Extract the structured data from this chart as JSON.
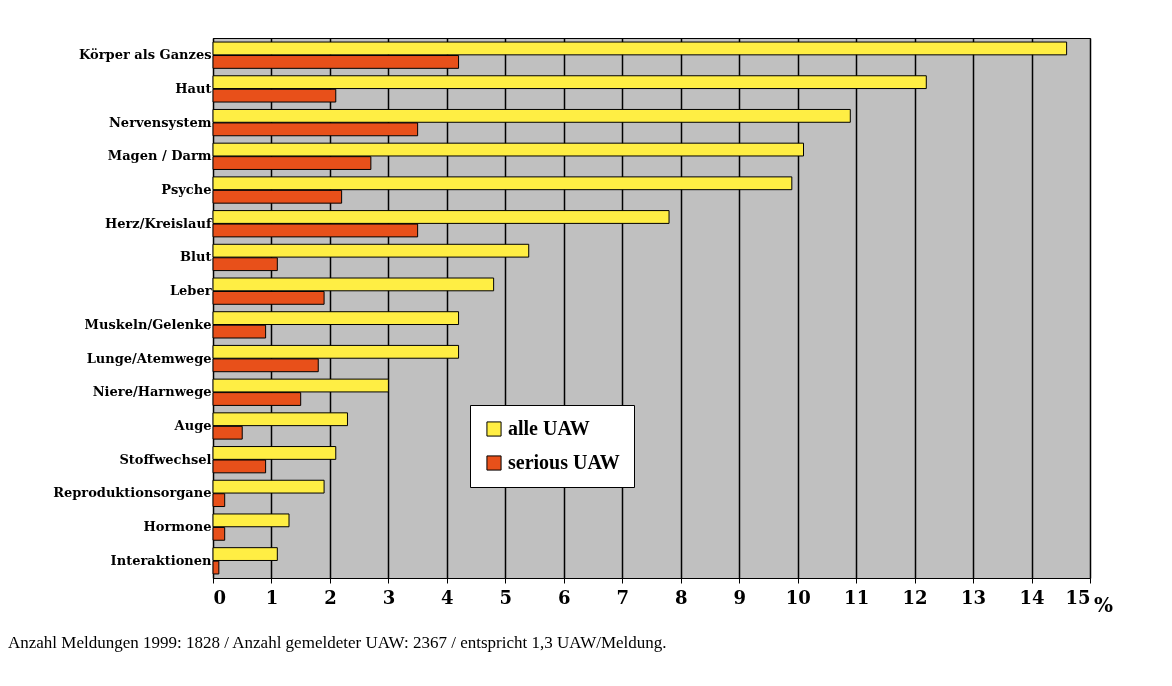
{
  "chart_data": {
    "type": "bar",
    "orientation": "horizontal",
    "categories": [
      "Körper als Ganzes",
      "Haut",
      "Nervensystem",
      "Magen / Darm",
      "Psyche",
      "Herz/Kreislauf",
      "Blut",
      "Leber",
      "Muskeln/Gelenke",
      "Lunge/Atemwege",
      "Niere/Harnwege",
      "Auge",
      "Stoffwechsel",
      "Reproduktionsorgane",
      "Hormone",
      "Interaktionen"
    ],
    "series": [
      {
        "name": "alle UAW",
        "color": "#ffee44",
        "values": [
          14.6,
          12.2,
          10.9,
          10.1,
          9.9,
          7.8,
          5.4,
          4.8,
          4.2,
          4.2,
          3.0,
          2.3,
          2.1,
          1.9,
          1.3,
          1.1
        ]
      },
      {
        "name": "serious UAW",
        "color": "#e8501a",
        "values": [
          4.2,
          2.1,
          3.5,
          2.7,
          2.2,
          3.5,
          1.1,
          1.9,
          0.9,
          1.8,
          1.5,
          0.5,
          0.9,
          0.2,
          0.2,
          0.1
        ]
      }
    ],
    "xlabel": "%",
    "xlim": [
      0,
      15
    ],
    "xticks": [
      0,
      1,
      2,
      3,
      4,
      5,
      6,
      7,
      8,
      9,
      10,
      11,
      12,
      13,
      14,
      15
    ],
    "grid": "x",
    "legend": "bottom",
    "annotations": [
      "Anzahl Meldungen 1999: 1828 / Anzahl gemeldeter UAW: 2367 / entspricht 1,3 UAW/Meldung."
    ]
  }
}
